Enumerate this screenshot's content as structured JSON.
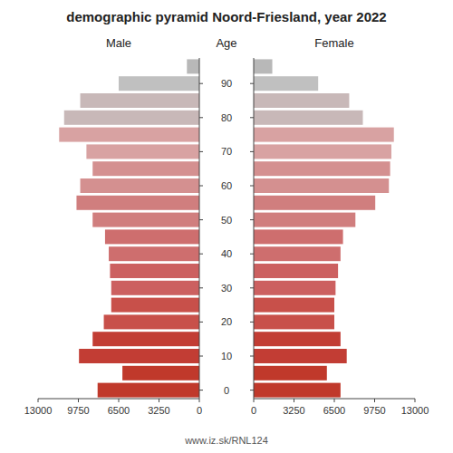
{
  "chart_data": {
    "type": "pyramid",
    "title": "demographic pyramid Noord-Friesland, year 2022",
    "orientation": "horizontal",
    "y_label": "Age",
    "annotations": [
      {
        "text": "www.iz.sk/RNL124"
      }
    ],
    "categories": [
      "0",
      null,
      "10",
      null,
      "20",
      null,
      "30",
      null,
      "40",
      null,
      "50",
      null,
      "60",
      null,
      "70",
      null,
      "80",
      null,
      "90",
      null
    ],
    "series": [
      {
        "name": "Male",
        "values": [
          8200,
          6200,
          9700,
          8600,
          7700,
          7100,
          7100,
          7200,
          7300,
          7600,
          8600,
          9900,
          9600,
          8600,
          9100,
          11300,
          10900,
          9600,
          6500,
          1000
        ],
        "colors": [
          "#c0392b",
          "#c0392b",
          "#c23d34",
          "#c23d34",
          "#c8504a",
          "#c8504a",
          "#cc6060",
          "#cc6060",
          "#ce6e6e",
          "#ce6e6e",
          "#d07e7e",
          "#d07e7e",
          "#d49090",
          "#d49090",
          "#d8a2a2",
          "#d8a2a2",
          "#c8b8b8",
          "#c8b8b8",
          "#c0c0c0",
          "#b8b8b8"
        ]
      },
      {
        "name": "Female",
        "values": [
          7000,
          5900,
          7500,
          7000,
          6500,
          6500,
          6600,
          6800,
          7000,
          7200,
          8200,
          9800,
          10900,
          11000,
          11100,
          11300,
          8800,
          7700,
          5200,
          1500
        ],
        "colors": [
          "#c0392b",
          "#c0392b",
          "#c23d34",
          "#c23d34",
          "#c8504a",
          "#c8504a",
          "#cc6060",
          "#cc6060",
          "#ce6e6e",
          "#ce6e6e",
          "#d07e7e",
          "#d07e7e",
          "#d49090",
          "#d49090",
          "#d8a2a2",
          "#d8a2a2",
          "#c8b8b8",
          "#c8b8b8",
          "#c0c0c0",
          "#b8b8b8"
        ]
      }
    ],
    "xlim": [
      0,
      13000
    ],
    "xticks": [
      0,
      3250,
      6500,
      9750,
      13000
    ],
    "grid": false
  }
}
